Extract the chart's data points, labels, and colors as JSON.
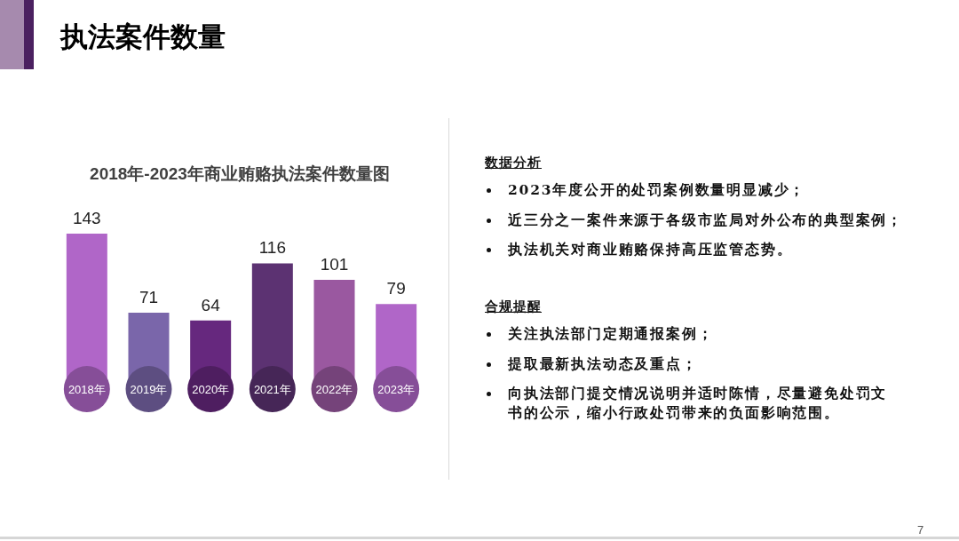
{
  "chart_data": [
    {
      "type": "other",
      "title": "执法案件数量",
      "annotations": [
        "7"
      ]
    },
    {
      "type": "bar",
      "title": "2018年-2023年商业贿赂执法案件数量图",
      "categories": [
        "2018年",
        "2019年",
        "2020年",
        "2021年",
        "2022年",
        "2023年"
      ],
      "values": [
        143,
        71,
        64,
        116,
        101,
        79
      ],
      "colors": [
        "#b066c8",
        "#7a66aa",
        "#66287e",
        "#5c3272",
        "#9a58a0",
        "#b066c8"
      ],
      "data_labels": true
    },
    {
      "type": "other",
      "title": "数据分析",
      "annotations": [
        "2023年度公开的处罚案例数量明显减少；",
        "近三分之一案件来源于各级市监局对外公布的典型案例；",
        "执法机关对商业贿赂保持高压监管态势。"
      ]
    },
    {
      "type": "other",
      "title": "合规提醒",
      "annotations": [
        "关注执法部门定期通报案例；",
        "提取最新执法动态及重点；",
        "向执法部门提交情况说明并适时陈情，尽量避免处罚文书的公示，缩小行政处罚带来的负面影响范围。"
      ]
    }
  ]
}
